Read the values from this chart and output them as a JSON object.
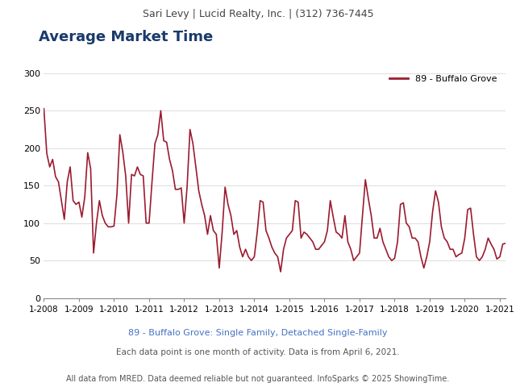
{
  "header_text": "Sari Levy | Lucid Realty, Inc. | (312) 736-7445",
  "title": "Average Market Time",
  "legend_label": "89 - Buffalo Grove",
  "line_color": "#9B1B30",
  "subtitle1": "89 - Buffalo Grove: Single Family, Detached Single-Family",
  "subtitle2": "Each data point is one month of activity. Data is from April 6, 2021.",
  "footer": "All data from MRED. Data deemed reliable but not guaranteed. InfoSparks © 2025 ShowingTime.",
  "ylim": [
    0,
    310
  ],
  "yticks": [
    0,
    50,
    100,
    150,
    200,
    250,
    300
  ],
  "xtick_labels": [
    "1-2008",
    "1-2009",
    "1-2010",
    "1-2011",
    "1-2012",
    "1-2013",
    "1-2014",
    "1-2015",
    "1-2016",
    "1-2017",
    "1-2018",
    "1-2019",
    "1-2020",
    "1-2021"
  ],
  "header_bg": "#e8e8e8",
  "title_color": "#1a3a6b",
  "subtitle_color": "#4472c4",
  "values": [
    253,
    193,
    175,
    185,
    162,
    155,
    130,
    105,
    155,
    175,
    130,
    125,
    128,
    108,
    135,
    194,
    173,
    60,
    100,
    130,
    110,
    100,
    95,
    95,
    96,
    138,
    218,
    195,
    163,
    100,
    165,
    163,
    175,
    165,
    163,
    100,
    100,
    155,
    206,
    218,
    250,
    210,
    208,
    185,
    170,
    145,
    145,
    147,
    100,
    148,
    225,
    206,
    175,
    143,
    125,
    110,
    85,
    110,
    90,
    85,
    40,
    88,
    148,
    125,
    110,
    85,
    90,
    68,
    55,
    65,
    55,
    50,
    55,
    88,
    130,
    128,
    90,
    80,
    68,
    60,
    55,
    35,
    65,
    80,
    85,
    90,
    130,
    128,
    80,
    88,
    85,
    80,
    75,
    65,
    65,
    70,
    75,
    90,
    130,
    108,
    88,
    85,
    80,
    110,
    75,
    65,
    50,
    55,
    60,
    110,
    158,
    133,
    110,
    80,
    80,
    93,
    75,
    65,
    55,
    50,
    53,
    75,
    125,
    127,
    100,
    95,
    80,
    80,
    75,
    55,
    40,
    55,
    75,
    115,
    143,
    128,
    95,
    80,
    75,
    65,
    65,
    55,
    58,
    60,
    80,
    118,
    120,
    85,
    55,
    50,
    55,
    65,
    80,
    72,
    65,
    52,
    55,
    72,
    73
  ]
}
